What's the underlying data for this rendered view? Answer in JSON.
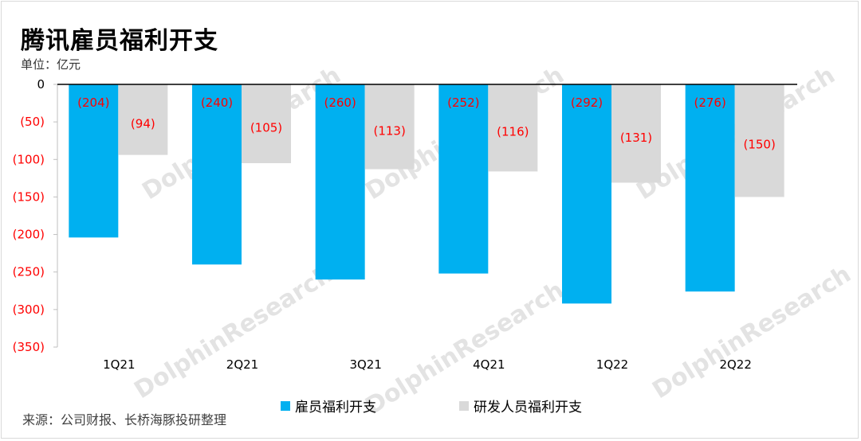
{
  "title": "腾讯雇员福利开支",
  "unit_label": "单位：亿元",
  "source": "来源：公司财报、长桥海豚投研整理",
  "watermark": "DolphinResearch",
  "colors": {
    "series1": "#00b0f0",
    "series2": "#d9d9d9",
    "label": "#ff0000",
    "axis_zero": "#000000"
  },
  "chart_data": {
    "type": "bar",
    "categories": [
      "1Q21",
      "2Q21",
      "3Q21",
      "4Q21",
      "1Q22",
      "2Q22"
    ],
    "series": [
      {
        "name": "雇员福利开支",
        "values": [
          -204,
          -240,
          -260,
          -252,
          -292,
          -276
        ],
        "labels": [
          "(204)",
          "(240)",
          "(260)",
          "(252)",
          "(292)",
          "(276)"
        ]
      },
      {
        "name": "研发人员福利开支",
        "values": [
          -94,
          -105,
          -113,
          -116,
          -131,
          -150
        ],
        "labels": [
          "(94)",
          "(105)",
          "(113)",
          "(116)",
          "(131)",
          "(150)"
        ]
      }
    ],
    "ylim": [
      -350,
      0
    ],
    "yticks": [
      0,
      -50,
      -100,
      -150,
      -200,
      -250,
      -300,
      -350
    ],
    "ytick_labels": [
      "0",
      "(50)",
      "(100)",
      "(150)",
      "(200)",
      "(250)",
      "(300)",
      "(350)"
    ],
    "grid": false,
    "legend_position": "bottom"
  }
}
